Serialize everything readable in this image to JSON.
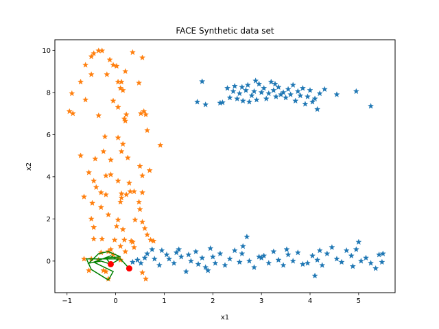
{
  "chart_data": {
    "type": "scatter",
    "title": "FACE Synthetic data set",
    "xlabel": "x1",
    "ylabel": "x2",
    "xlim": [
      -1.25,
      5.75
    ],
    "ylim": [
      -1.5,
      10.5
    ],
    "xticks": [
      -1,
      0,
      1,
      2,
      3,
      4,
      5
    ],
    "yticks": [
      0,
      2,
      4,
      6,
      8,
      10
    ],
    "grid": false,
    "colors": {
      "series_1": "#1f77b4",
      "series_2": "#ff7f0e",
      "path": "#008000",
      "endpoints": "#ff0000"
    },
    "series": [
      {
        "marker": "star",
        "color": "#1f77b4",
        "points": [
          [
            1.68,
            7.55
          ],
          [
            1.78,
            8.52
          ],
          [
            1.85,
            7.42
          ],
          [
            2.15,
            7.5
          ],
          [
            2.2,
            7.52
          ],
          [
            2.35,
            7.75
          ],
          [
            2.42,
            8.05
          ],
          [
            2.45,
            8.3
          ],
          [
            2.5,
            7.7
          ],
          [
            2.55,
            7.95
          ],
          [
            2.6,
            8.25
          ],
          [
            2.62,
            7.6
          ],
          [
            2.68,
            8.1
          ],
          [
            2.72,
            8.35
          ],
          [
            2.75,
            7.55
          ],
          [
            2.8,
            7.85
          ],
          [
            2.85,
            8.05
          ],
          [
            2.9,
            7.65
          ],
          [
            2.95,
            8.4
          ],
          [
            3.0,
            8.0
          ],
          [
            3.05,
            8.2
          ],
          [
            3.1,
            7.7
          ],
          [
            3.15,
            7.95
          ],
          [
            3.2,
            8.5
          ],
          [
            3.25,
            8.1
          ],
          [
            3.3,
            7.8
          ],
          [
            3.35,
            8.25
          ],
          [
            3.4,
            7.9
          ],
          [
            3.45,
            8.0
          ],
          [
            3.5,
            7.75
          ],
          [
            3.55,
            8.15
          ],
          [
            3.6,
            7.9
          ],
          [
            3.65,
            8.35
          ],
          [
            3.7,
            7.6
          ],
          [
            3.75,
            8.05
          ],
          [
            3.8,
            7.85
          ],
          [
            3.85,
            8.2
          ],
          [
            3.9,
            7.45
          ],
          [
            3.95,
            7.8
          ],
          [
            4.0,
            8.1
          ],
          [
            4.05,
            7.55
          ],
          [
            4.1,
            7.7
          ],
          [
            4.15,
            7.2
          ],
          [
            4.2,
            7.95
          ],
          [
            4.3,
            8.15
          ],
          [
            4.55,
            7.9
          ],
          [
            4.95,
            8.05
          ],
          [
            5.25,
            7.35
          ],
          [
            2.88,
            8.55
          ],
          [
            3.28,
            8.4
          ],
          [
            2.3,
            8.2
          ],
          [
            0.35,
            -0.05
          ],
          [
            0.45,
            0.05
          ],
          [
            0.52,
            -0.1
          ],
          [
            0.6,
            0.15
          ],
          [
            0.65,
            0.35
          ],
          [
            0.75,
            0.55
          ],
          [
            0.8,
            0.1
          ],
          [
            0.9,
            -0.2
          ],
          [
            0.95,
            0.5
          ],
          [
            1.05,
            0.3
          ],
          [
            1.1,
            0.1
          ],
          [
            1.2,
            -0.1
          ],
          [
            1.25,
            0.4
          ],
          [
            1.35,
            0.2
          ],
          [
            1.45,
            -0.5
          ],
          [
            1.5,
            0.3
          ],
          [
            1.55,
            0.0
          ],
          [
            1.65,
            0.45
          ],
          [
            1.7,
            -0.15
          ],
          [
            1.78,
            0.15
          ],
          [
            1.85,
            -0.3
          ],
          [
            1.95,
            0.6
          ],
          [
            2.0,
            0.2
          ],
          [
            2.05,
            -0.1
          ],
          [
            2.15,
            0.35
          ],
          [
            2.25,
            -0.2
          ],
          [
            2.35,
            0.1
          ],
          [
            2.45,
            0.5
          ],
          [
            2.55,
            -0.05
          ],
          [
            2.6,
            0.35
          ],
          [
            2.7,
            1.15
          ],
          [
            2.75,
            0.0
          ],
          [
            2.85,
            -0.3
          ],
          [
            2.95,
            0.2
          ],
          [
            3.05,
            0.25
          ],
          [
            3.15,
            -0.1
          ],
          [
            3.25,
            0.45
          ],
          [
            3.35,
            0.05
          ],
          [
            3.45,
            -0.2
          ],
          [
            3.55,
            0.3
          ],
          [
            3.65,
            0.0
          ],
          [
            3.75,
            0.4
          ],
          [
            3.85,
            -0.15
          ],
          [
            3.95,
            -0.1
          ],
          [
            4.05,
            0.25
          ],
          [
            4.1,
            -0.7
          ],
          [
            4.15,
            0.05
          ],
          [
            4.25,
            -0.2
          ],
          [
            4.35,
            0.35
          ],
          [
            4.45,
            0.65
          ],
          [
            4.55,
            0.1
          ],
          [
            4.65,
            -0.05
          ],
          [
            4.75,
            0.5
          ],
          [
            4.85,
            0.25
          ],
          [
            4.95,
            0.55
          ],
          [
            5.0,
            0.9
          ],
          [
            5.05,
            0.0
          ],
          [
            5.15,
            0.15
          ],
          [
            5.25,
            -0.1
          ],
          [
            5.35,
            -0.35
          ],
          [
            5.42,
            0.3
          ],
          [
            5.48,
            -0.05
          ],
          [
            1.9,
            -0.45
          ],
          [
            2.62,
            0.7
          ],
          [
            3.52,
            0.55
          ],
          [
            4.88,
            -0.25
          ],
          [
            5.5,
            0.35
          ],
          [
            1.3,
            0.55
          ],
          [
            3.0,
            0.15
          ],
          [
            4.2,
            0.5
          ]
        ]
      },
      {
        "marker": "star",
        "color": "#ff7f0e",
        "points": [
          [
            -0.45,
            9.85
          ],
          [
            -0.35,
            9.98
          ],
          [
            -0.28,
            9.98
          ],
          [
            -0.5,
            9.7
          ],
          [
            -0.62,
            9.3
          ],
          [
            -0.5,
            8.85
          ],
          [
            -0.18,
            8.85
          ],
          [
            -0.12,
            9.55
          ],
          [
            -0.05,
            9.3
          ],
          [
            0.02,
            9.25
          ],
          [
            0.05,
            8.5
          ],
          [
            0.12,
            8.5
          ],
          [
            0.35,
            9.9
          ],
          [
            0.55,
            9.65
          ],
          [
            0.48,
            8.45
          ],
          [
            0.2,
            9.0
          ],
          [
            0.1,
            8.2
          ],
          [
            0.15,
            8.1
          ],
          [
            -0.72,
            8.5
          ],
          [
            -0.9,
            7.95
          ],
          [
            -0.95,
            7.1
          ],
          [
            -0.88,
            7.0
          ],
          [
            -0.05,
            7.6
          ],
          [
            0.05,
            7.3
          ],
          [
            0.22,
            6.95
          ],
          [
            0.18,
            6.75
          ],
          [
            0.2,
            6.65
          ],
          [
            0.52,
            7.0
          ],
          [
            0.58,
            7.1
          ],
          [
            0.62,
            6.95
          ],
          [
            -0.35,
            6.9
          ],
          [
            0.12,
            5.2
          ],
          [
            0.65,
            6.2
          ],
          [
            -0.22,
            5.9
          ],
          [
            0.15,
            5.55
          ],
          [
            0.25,
            4.9
          ],
          [
            0.92,
            5.5
          ],
          [
            -0.25,
            5.2
          ],
          [
            -0.1,
            4.8
          ],
          [
            -0.72,
            5.0
          ],
          [
            0.5,
            4.5
          ],
          [
            0.7,
            4.3
          ],
          [
            -0.55,
            4.2
          ],
          [
            -0.1,
            4.1
          ],
          [
            -0.45,
            3.8
          ],
          [
            -0.2,
            4.05
          ],
          [
            0.05,
            3.8
          ],
          [
            0.55,
            4.05
          ],
          [
            -0.4,
            3.5
          ],
          [
            0.3,
            3.3
          ],
          [
            0.38,
            3.3
          ],
          [
            0.55,
            3.25
          ],
          [
            0.22,
            3.15
          ],
          [
            -0.65,
            3.05
          ],
          [
            0.12,
            3.2
          ],
          [
            0.12,
            3.0
          ],
          [
            0.1,
            2.8
          ],
          [
            -0.3,
            3.25
          ],
          [
            -0.2,
            3.15
          ],
          [
            -0.48,
            2.75
          ],
          [
            -0.3,
            2.55
          ],
          [
            0.48,
            2.8
          ],
          [
            -0.5,
            2.0
          ],
          [
            -0.45,
            1.6
          ],
          [
            0.05,
            1.95
          ],
          [
            -0.45,
            1.05
          ],
          [
            -0.28,
            1.05
          ],
          [
            0.02,
            1.65
          ],
          [
            0.15,
            1.5
          ],
          [
            0.4,
            1.95
          ],
          [
            0.55,
            1.85
          ],
          [
            0.6,
            1.55
          ],
          [
            0.65,
            1.25
          ],
          [
            0.18,
            1.0
          ],
          [
            0.72,
            1.0
          ],
          [
            0.78,
            0.95
          ],
          [
            -0.02,
            1.0
          ],
          [
            0.35,
            0.9
          ],
          [
            -0.1,
            0.55
          ],
          [
            0.1,
            0.7
          ],
          [
            0.2,
            0.45
          ],
          [
            -0.3,
            0.4
          ],
          [
            0.38,
            0.65
          ],
          [
            0.05,
            0.15
          ],
          [
            -0.5,
            0.1
          ],
          [
            -0.65,
            0.1
          ],
          [
            -0.35,
            0.05
          ],
          [
            -0.15,
            0.45
          ],
          [
            -0.05,
            0.3
          ],
          [
            0.1,
            0.05
          ],
          [
            -0.55,
            -0.45
          ],
          [
            -0.25,
            -0.45
          ],
          [
            -0.15,
            -0.85
          ],
          [
            0.55,
            -0.55
          ],
          [
            0.62,
            -0.85
          ],
          [
            -0.2,
            -0.5
          ],
          [
            0.32,
            0.95
          ],
          [
            -0.62,
            7.65
          ],
          [
            0.05,
            5.85
          ],
          [
            -0.42,
            4.85
          ],
          [
            0.28,
            3.7
          ],
          [
            -0.15,
            2.2
          ],
          [
            0.5,
            2.45
          ]
        ]
      }
    ],
    "paths": [
      {
        "color": "#008000",
        "points": [
          [
            0.28,
            -0.35
          ],
          [
            0.1,
            0.1
          ],
          [
            -0.6,
            0.1
          ],
          [
            -0.5,
            -0.4
          ],
          [
            -0.15,
            -0.9
          ],
          [
            -0.05,
            -0.5
          ],
          [
            -0.45,
            -0.05
          ],
          [
            -0.1,
            0.25
          ],
          [
            0.05,
            0.05
          ],
          [
            -0.1,
            -0.15
          ],
          [
            -0.3,
            0.0
          ],
          [
            -0.55,
            -0.1
          ],
          [
            -0.35,
            0.35
          ],
          [
            -0.15,
            0.45
          ],
          [
            0.1,
            0.2
          ],
          [
            -0.2,
            0.15
          ],
          [
            -0.1,
            -0.15
          ]
        ]
      }
    ],
    "endpoints": [
      [
        -0.1,
        -0.15
      ],
      [
        0.28,
        -0.35
      ]
    ]
  }
}
